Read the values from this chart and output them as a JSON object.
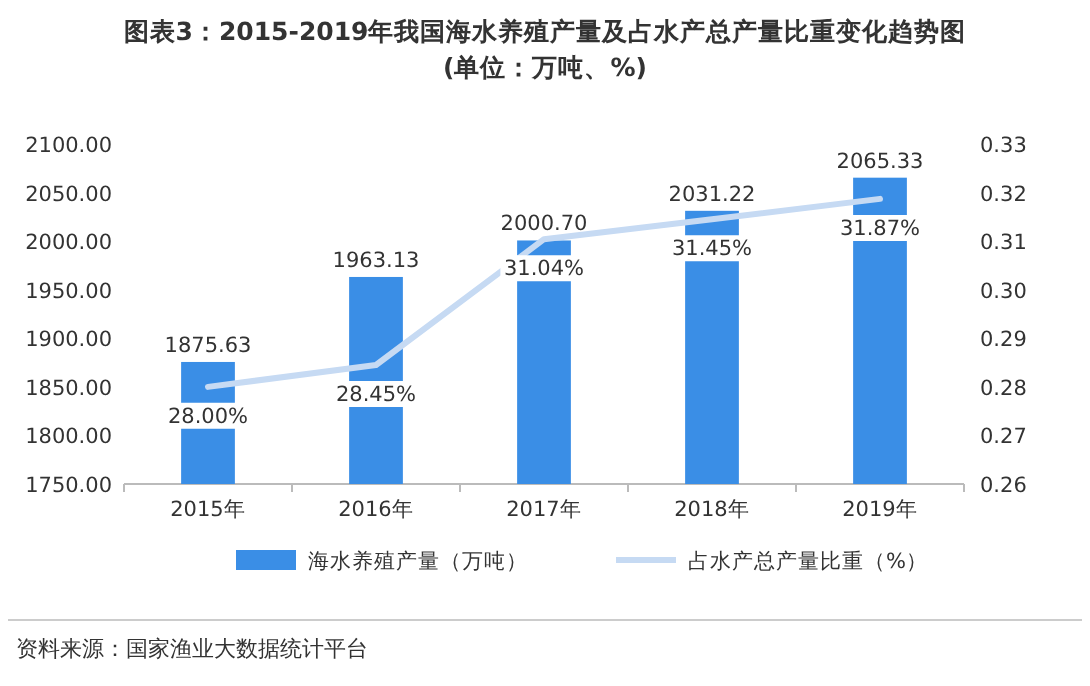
{
  "chart_data": {
    "type": "bar",
    "title": "图表3：2015-2019年我国海水养殖产量及占水产总产量比重变化趋势图(单位：万吨、%)",
    "categories": [
      "2015年",
      "2016年",
      "2017年",
      "2018年",
      "2019年"
    ],
    "series": [
      {
        "name": "海水养殖产量（万吨）",
        "color": "#3a8ee6",
        "values": [
          1875.63,
          1963.13,
          2000.7,
          2031.22,
          2065.33
        ],
        "value_labels": [
          "1875.63",
          "1963.13",
          "2000.70",
          "2031.22",
          "2065.33"
        ]
      },
      {
        "name": "占水产总产量比重（%）",
        "type": "line",
        "axis": "y2",
        "color": "#c6daf3",
        "values": [
          0.28,
          0.2845,
          0.3104,
          0.3145,
          0.3187
        ],
        "value_labels": [
          "28.00%",
          "28.45%",
          "31.04%",
          "31.45%",
          "31.87%"
        ]
      }
    ],
    "ylim": [
      1750,
      2100
    ],
    "yticks": [
      {
        "value": 1750,
        "label": "1750.00"
      },
      {
        "value": 1800,
        "label": "1800.00"
      },
      {
        "value": 1850,
        "label": "1850.00"
      },
      {
        "value": 1900,
        "label": "1900.00"
      },
      {
        "value": 1950,
        "label": "1950.00"
      },
      {
        "value": 2000,
        "label": "2000.00"
      },
      {
        "value": 2050,
        "label": "2050.00"
      },
      {
        "value": 2100,
        "label": "2100.00"
      }
    ],
    "y2lim": [
      0.26,
      0.33
    ],
    "y2ticks": [
      0.26,
      0.27,
      0.28,
      0.29,
      {
        "value": 0.3,
        "label": "0.30"
      },
      0.31,
      0.32,
      0.33
    ],
    "legend": "bottom",
    "annotations": [
      "资料来源：国家渔业大数据统计平台"
    ]
  }
}
